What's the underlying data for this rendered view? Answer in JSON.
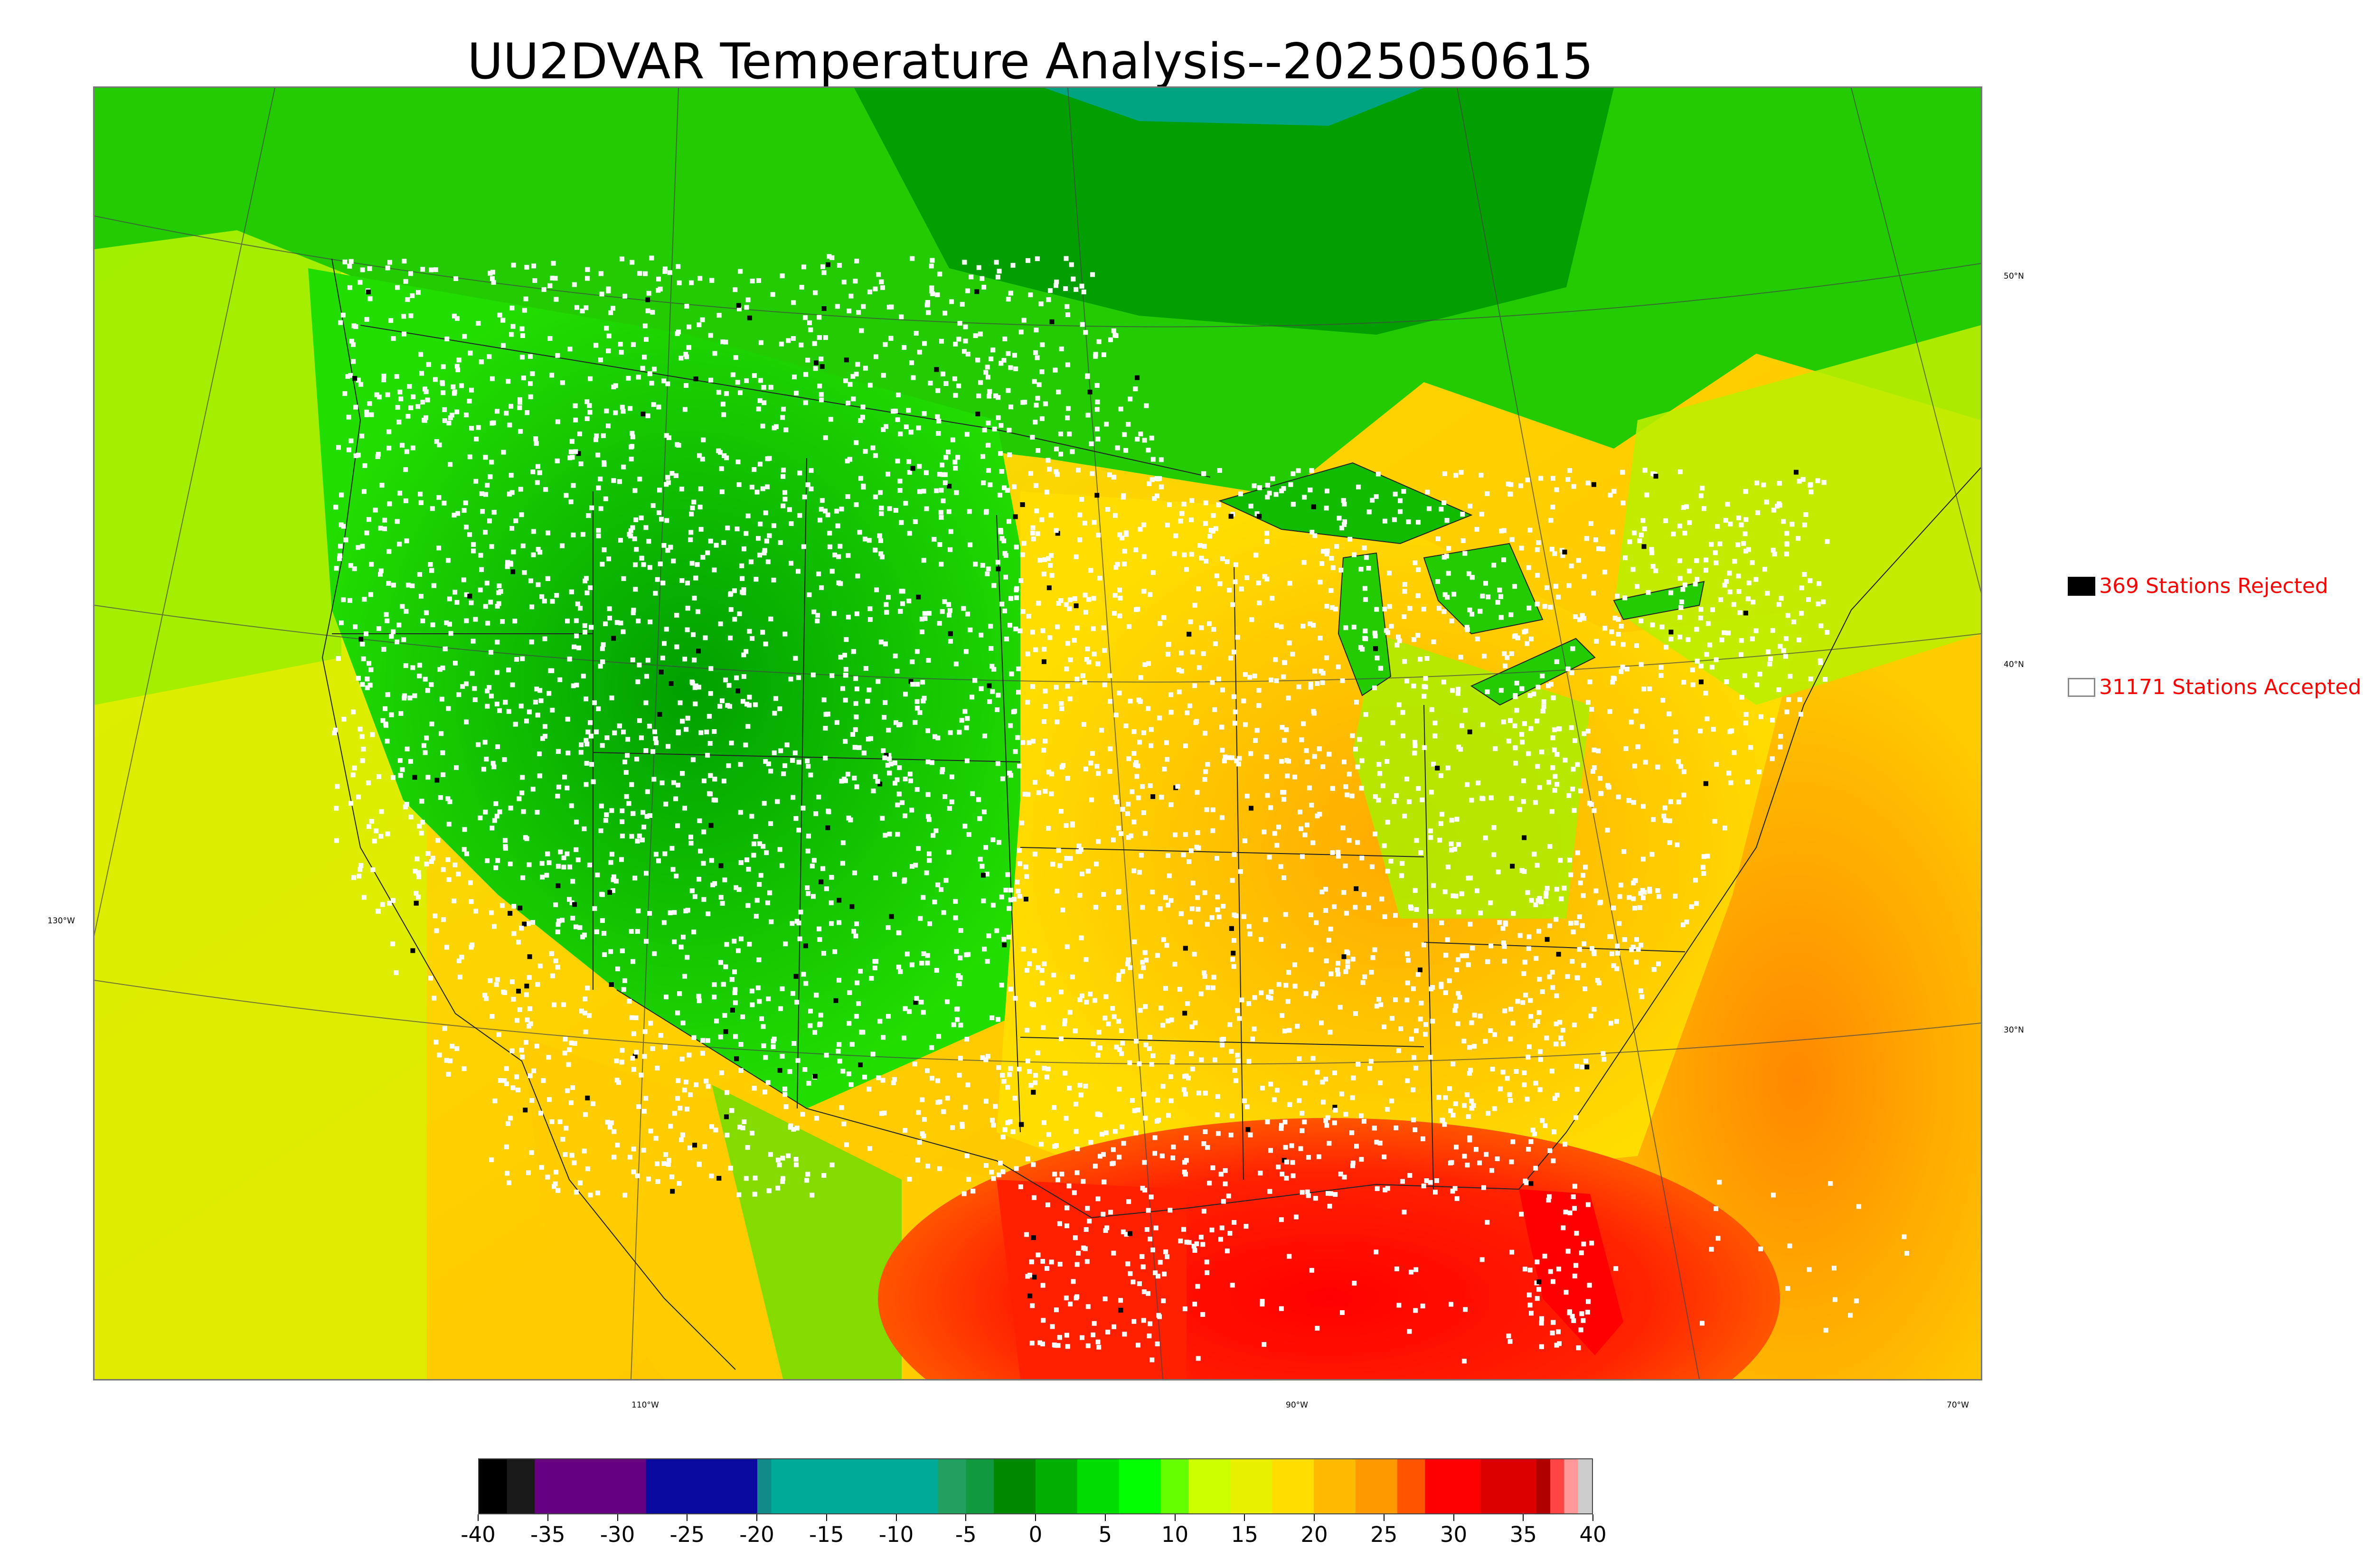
{
  "title": "UU2DVAR Temperature Analysis--2025050615",
  "map": {
    "projection": "lambert-conformal",
    "basemap": "CONUS with Canada and Mexico",
    "station_colors": {
      "accepted": "#ffffff",
      "rejected": "#000000"
    },
    "longitude_labels": [
      "130°W",
      "110°W",
      "90°W",
      "70°W"
    ],
    "latitude_labels": [
      "50°N",
      "40°N",
      "30°N"
    ]
  },
  "legend": {
    "rejected": {
      "count": 369,
      "label": "369 Stations Rejected"
    },
    "accepted": {
      "count": 31171,
      "label": "31171 Stations Accepted"
    }
  },
  "colorbar": {
    "min": -40,
    "max": 40,
    "tick_labels": [
      "-40",
      "-35",
      "-30",
      "-25",
      "-20",
      "-15",
      "-10",
      "-5",
      "0",
      "5",
      "10",
      "15",
      "20",
      "25",
      "30",
      "35",
      "40"
    ],
    "segments": [
      {
        "from": -40,
        "to": -38,
        "color": "#000000"
      },
      {
        "from": -38,
        "to": -36,
        "color": "#1a1a1a"
      },
      {
        "from": -36,
        "to": -28,
        "color": "#660080"
      },
      {
        "from": -28,
        "to": -20,
        "color": "#0a0aa0"
      },
      {
        "from": -20,
        "to": -19,
        "color": "#128a8a"
      },
      {
        "from": -19,
        "to": -7,
        "color": "#00aa99"
      },
      {
        "from": -7,
        "to": -5,
        "color": "#22a060"
      },
      {
        "from": -5,
        "to": -3,
        "color": "#119940"
      },
      {
        "from": -3,
        "to": 0,
        "color": "#008800"
      },
      {
        "from": 0,
        "to": 3,
        "color": "#00b000"
      },
      {
        "from": 3,
        "to": 6,
        "color": "#00dd00"
      },
      {
        "from": 6,
        "to": 9,
        "color": "#00ff00"
      },
      {
        "from": 9,
        "to": 11,
        "color": "#66ff00"
      },
      {
        "from": 11,
        "to": 14,
        "color": "#ccff00"
      },
      {
        "from": 14,
        "to": 17,
        "color": "#e8f000"
      },
      {
        "from": 17,
        "to": 20,
        "color": "#ffdd00"
      },
      {
        "from": 20,
        "to": 23,
        "color": "#ffbb00"
      },
      {
        "from": 23,
        "to": 26,
        "color": "#ff9900"
      },
      {
        "from": 26,
        "to": 28,
        "color": "#ff5500"
      },
      {
        "from": 28,
        "to": 32,
        "color": "#ff0000"
      },
      {
        "from": 32,
        "to": 36,
        "color": "#dd0000"
      },
      {
        "from": 36,
        "to": 37,
        "color": "#b00000"
      },
      {
        "from": 37,
        "to": 38,
        "color": "#ff4444"
      },
      {
        "from": 38,
        "to": 39,
        "color": "#ff9999"
      },
      {
        "from": 39,
        "to": 40,
        "color": "#cccccc"
      }
    ]
  }
}
